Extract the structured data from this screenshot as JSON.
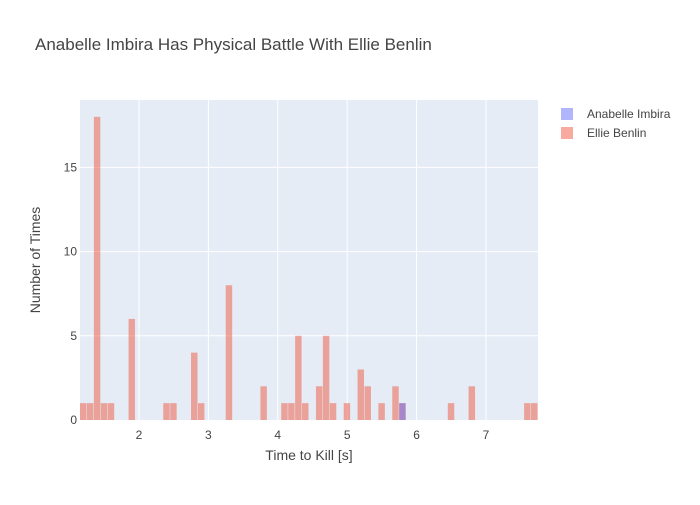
{
  "chart_data": {
    "type": "bar",
    "title": "Anabelle Imbira Has Physical Battle With Ellie Benlin",
    "xlabel": "Time to Kill [s]",
    "ylabel": "Number of Times",
    "xlim": [
      1.15,
      7.75
    ],
    "ylim": [
      0,
      19
    ],
    "x_ticks": [
      2,
      3,
      4,
      5,
      6,
      7
    ],
    "y_ticks": [
      0,
      5,
      10,
      15
    ],
    "bin_width": 0.1,
    "grid": true,
    "legend_position": "top-right",
    "barmode": "overlay",
    "series": [
      {
        "name": "Anabelle Imbira",
        "color": "#636efa",
        "opacity": 0.5,
        "bins": [
          {
            "x": 5.8,
            "count": 1
          }
        ]
      },
      {
        "name": "Ellie Benlin",
        "color": "#ef553b",
        "opacity": 0.5,
        "bins": [
          {
            "x": 1.2,
            "count": 1
          },
          {
            "x": 1.3,
            "count": 1
          },
          {
            "x": 1.4,
            "count": 18
          },
          {
            "x": 1.5,
            "count": 1
          },
          {
            "x": 1.6,
            "count": 1
          },
          {
            "x": 1.9,
            "count": 6
          },
          {
            "x": 2.4,
            "count": 1
          },
          {
            "x": 2.5,
            "count": 1
          },
          {
            "x": 2.8,
            "count": 4
          },
          {
            "x": 2.9,
            "count": 1
          },
          {
            "x": 3.3,
            "count": 8
          },
          {
            "x": 3.8,
            "count": 2
          },
          {
            "x": 4.1,
            "count": 1
          },
          {
            "x": 4.2,
            "count": 1
          },
          {
            "x": 4.3,
            "count": 5
          },
          {
            "x": 4.4,
            "count": 1
          },
          {
            "x": 4.6,
            "count": 2
          },
          {
            "x": 4.7,
            "count": 5
          },
          {
            "x": 4.8,
            "count": 1
          },
          {
            "x": 5.0,
            "count": 1
          },
          {
            "x": 5.2,
            "count": 3
          },
          {
            "x": 5.3,
            "count": 2
          },
          {
            "x": 5.5,
            "count": 1
          },
          {
            "x": 5.7,
            "count": 2
          },
          {
            "x": 5.8,
            "count": 1
          },
          {
            "x": 6.5,
            "count": 1
          },
          {
            "x": 6.8,
            "count": 2
          },
          {
            "x": 7.6,
            "count": 1
          },
          {
            "x": 7.7,
            "count": 1
          }
        ]
      }
    ]
  }
}
